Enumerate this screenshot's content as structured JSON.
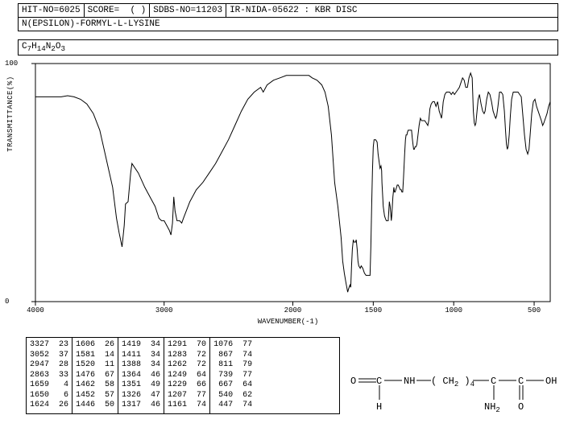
{
  "header": {
    "hit_no_label": "HIT-NO=",
    "hit_no": "6025",
    "score_label": "SCORE=",
    "score_val": "(  )",
    "sdbs_label": "SDBS-NO=",
    "sdbs_no": "11203",
    "ir_label": "IR-NIDA-05622 : KBR DISC"
  },
  "compound_name": "N(EPSILON)-FORMYL-L-LYSINE",
  "formula": "C7H14N2O3",
  "chart": {
    "type": "line",
    "title": "",
    "ylabel": "TRANSMITTANCE(%)",
    "xlabel": "WAVENUMBER(-1)",
    "ylim": [
      0,
      100
    ],
    "yticks": [
      0,
      100
    ],
    "xlim_display": [
      4000,
      400
    ],
    "xticks": [
      4000,
      3000,
      2000,
      1500,
      1000,
      500
    ],
    "line_color": "#000000",
    "line_width": 1,
    "plot_border_color": "#000000",
    "background_color": "#ffffff",
    "data": [
      [
        4000,
        86
      ],
      [
        3900,
        86
      ],
      [
        3800,
        86
      ],
      [
        3750,
        86.5
      ],
      [
        3700,
        86
      ],
      [
        3650,
        85
      ],
      [
        3600,
        83
      ],
      [
        3550,
        79
      ],
      [
        3500,
        72
      ],
      [
        3450,
        60
      ],
      [
        3400,
        48
      ],
      [
        3370,
        35
      ],
      [
        3350,
        29
      ],
      [
        3327,
        23
      ],
      [
        3310,
        32
      ],
      [
        3300,
        41
      ],
      [
        3280,
        42
      ],
      [
        3260,
        54
      ],
      [
        3250,
        58
      ],
      [
        3200,
        54
      ],
      [
        3150,
        48
      ],
      [
        3100,
        43
      ],
      [
        3070,
        40
      ],
      [
        3052,
        37
      ],
      [
        3040,
        35
      ],
      [
        3020,
        34
      ],
      [
        3000,
        34
      ],
      [
        2980,
        32
      ],
      [
        2960,
        30
      ],
      [
        2947,
        28
      ],
      [
        2935,
        33
      ],
      [
        2925,
        44
      ],
      [
        2915,
        38
      ],
      [
        2900,
        34
      ],
      [
        2880,
        34
      ],
      [
        2863,
        33
      ],
      [
        2850,
        35
      ],
      [
        2800,
        42
      ],
      [
        2750,
        47
      ],
      [
        2700,
        50
      ],
      [
        2650,
        54
      ],
      [
        2600,
        58
      ],
      [
        2550,
        63
      ],
      [
        2500,
        68
      ],
      [
        2450,
        74
      ],
      [
        2400,
        80
      ],
      [
        2350,
        85
      ],
      [
        2300,
        88
      ],
      [
        2250,
        90
      ],
      [
        2230,
        88
      ],
      [
        2200,
        91
      ],
      [
        2150,
        93
      ],
      [
        2100,
        94
      ],
      [
        2050,
        95
      ],
      [
        2000,
        95
      ],
      [
        1950,
        95
      ],
      [
        1900,
        95
      ],
      [
        1880,
        94
      ],
      [
        1850,
        93
      ],
      [
        1820,
        91
      ],
      [
        1800,
        88
      ],
      [
        1780,
        82
      ],
      [
        1760,
        70
      ],
      [
        1740,
        50
      ],
      [
        1720,
        40
      ],
      [
        1700,
        27
      ],
      [
        1690,
        17
      ],
      [
        1680,
        12
      ],
      [
        1670,
        8
      ],
      [
        1659,
        4
      ],
      [
        1655,
        5
      ],
      [
        1650,
        6
      ],
      [
        1645,
        7
      ],
      [
        1640,
        6
      ],
      [
        1635,
        15
      ],
      [
        1630,
        22
      ],
      [
        1624,
        26
      ],
      [
        1620,
        25
      ],
      [
        1615,
        25
      ],
      [
        1610,
        25
      ],
      [
        1606,
        26
      ],
      [
        1600,
        22
      ],
      [
        1595,
        17
      ],
      [
        1590,
        15
      ],
      [
        1581,
        14
      ],
      [
        1575,
        15
      ],
      [
        1565,
        14
      ],
      [
        1555,
        12
      ],
      [
        1545,
        11
      ],
      [
        1530,
        11
      ],
      [
        1520,
        11
      ],
      [
        1515,
        23
      ],
      [
        1510,
        40
      ],
      [
        1505,
        55
      ],
      [
        1500,
        65
      ],
      [
        1495,
        68
      ],
      [
        1490,
        68
      ],
      [
        1485,
        68
      ],
      [
        1476,
        67
      ],
      [
        1470,
        62
      ],
      [
        1462,
        58
      ],
      [
        1458,
        56
      ],
      [
        1452,
        57
      ],
      [
        1448,
        55
      ],
      [
        1446,
        50
      ],
      [
        1442,
        45
      ],
      [
        1438,
        40
      ],
      [
        1430,
        36
      ],
      [
        1425,
        35
      ],
      [
        1419,
        34
      ],
      [
        1415,
        34
      ],
      [
        1411,
        34
      ],
      [
        1407,
        34
      ],
      [
        1400,
        42
      ],
      [
        1395,
        40
      ],
      [
        1390,
        36
      ],
      [
        1388,
        34
      ],
      [
        1385,
        36
      ],
      [
        1378,
        44
      ],
      [
        1372,
        48
      ],
      [
        1368,
        46
      ],
      [
        1364,
        46
      ],
      [
        1360,
        47
      ],
      [
        1355,
        48
      ],
      [
        1351,
        49
      ],
      [
        1345,
        49
      ],
      [
        1338,
        48
      ],
      [
        1332,
        47
      ],
      [
        1326,
        47
      ],
      [
        1322,
        46
      ],
      [
        1317,
        46
      ],
      [
        1312,
        52
      ],
      [
        1305,
        62
      ],
      [
        1300,
        68
      ],
      [
        1296,
        70
      ],
      [
        1291,
        70
      ],
      [
        1288,
        71
      ],
      [
        1283,
        72
      ],
      [
        1278,
        72
      ],
      [
        1270,
        72
      ],
      [
        1262,
        72
      ],
      [
        1258,
        69
      ],
      [
        1253,
        66
      ],
      [
        1249,
        64
      ],
      [
        1245,
        64
      ],
      [
        1240,
        65
      ],
      [
        1235,
        65
      ],
      [
        1229,
        66
      ],
      [
        1222,
        70
      ],
      [
        1215,
        74
      ],
      [
        1210,
        76
      ],
      [
        1207,
        77
      ],
      [
        1200,
        76
      ],
      [
        1195,
        76
      ],
      [
        1190,
        76
      ],
      [
        1180,
        76
      ],
      [
        1170,
        75
      ],
      [
        1161,
        74
      ],
      [
        1155,
        76
      ],
      [
        1148,
        81
      ],
      [
        1140,
        83
      ],
      [
        1130,
        84
      ],
      [
        1120,
        84
      ],
      [
        1110,
        82
      ],
      [
        1100,
        84
      ],
      [
        1090,
        80
      ],
      [
        1080,
        78
      ],
      [
        1076,
        77
      ],
      [
        1072,
        79
      ],
      [
        1065,
        84
      ],
      [
        1055,
        87
      ],
      [
        1045,
        88
      ],
      [
        1035,
        88
      ],
      [
        1025,
        88
      ],
      [
        1015,
        87
      ],
      [
        1005,
        88
      ],
      [
        995,
        87
      ],
      [
        985,
        88
      ],
      [
        975,
        89
      ],
      [
        965,
        90
      ],
      [
        955,
        92
      ],
      [
        945,
        94
      ],
      [
        935,
        93
      ],
      [
        925,
        90
      ],
      [
        915,
        90
      ],
      [
        905,
        94
      ],
      [
        895,
        96
      ],
      [
        885,
        94
      ],
      [
        878,
        80
      ],
      [
        872,
        75
      ],
      [
        867,
        74
      ],
      [
        862,
        75
      ],
      [
        855,
        80
      ],
      [
        848,
        85
      ],
      [
        840,
        87
      ],
      [
        830,
        83
      ],
      [
        820,
        80
      ],
      [
        811,
        79
      ],
      [
        805,
        80
      ],
      [
        795,
        85
      ],
      [
        785,
        88
      ],
      [
        775,
        87
      ],
      [
        765,
        84
      ],
      [
        755,
        80
      ],
      [
        745,
        78
      ],
      [
        739,
        77
      ],
      [
        733,
        78
      ],
      [
        725,
        82
      ],
      [
        715,
        88
      ],
      [
        705,
        88
      ],
      [
        695,
        87
      ],
      [
        685,
        80
      ],
      [
        678,
        72
      ],
      [
        672,
        66
      ],
      [
        667,
        64
      ],
      [
        662,
        65
      ],
      [
        655,
        70
      ],
      [
        648,
        78
      ],
      [
        640,
        85
      ],
      [
        630,
        88
      ],
      [
        620,
        88
      ],
      [
        610,
        88
      ],
      [
        600,
        88
      ],
      [
        590,
        87
      ],
      [
        580,
        86
      ],
      [
        570,
        78
      ],
      [
        560,
        70
      ],
      [
        550,
        64
      ],
      [
        540,
        62
      ],
      [
        532,
        64
      ],
      [
        525,
        70
      ],
      [
        515,
        79
      ],
      [
        505,
        84
      ],
      [
        495,
        85
      ],
      [
        485,
        82
      ],
      [
        475,
        80
      ],
      [
        465,
        78
      ],
      [
        455,
        76
      ],
      [
        447,
        74
      ],
      [
        440,
        75
      ],
      [
        430,
        77
      ],
      [
        420,
        79
      ],
      [
        410,
        82
      ],
      [
        400,
        84
      ]
    ]
  },
  "peak_table": {
    "columns": [
      [
        [
          3327,
          23
        ],
        [
          3052,
          37
        ],
        [
          2947,
          28
        ],
        [
          2863,
          33
        ],
        [
          1659,
          4
        ],
        [
          1650,
          6
        ],
        [
          1624,
          26
        ]
      ],
      [
        [
          1606,
          26
        ],
        [
          1581,
          14
        ],
        [
          1520,
          11
        ],
        [
          1476,
          67
        ],
        [
          1462,
          58
        ],
        [
          1452,
          57
        ],
        [
          1446,
          50
        ]
      ],
      [
        [
          1419,
          34
        ],
        [
          1411,
          34
        ],
        [
          1388,
          34
        ],
        [
          1364,
          46
        ],
        [
          1351,
          49
        ],
        [
          1326,
          47
        ],
        [
          1317,
          46
        ]
      ],
      [
        [
          1291,
          70
        ],
        [
          1283,
          72
        ],
        [
          1262,
          72
        ],
        [
          1249,
          64
        ],
        [
          1229,
          66
        ],
        [
          1207,
          77
        ],
        [
          1161,
          74
        ]
      ],
      [
        [
          1076,
          77
        ],
        [
          867,
          74
        ],
        [
          811,
          79
        ],
        [
          739,
          77
        ],
        [
          667,
          64
        ],
        [
          540,
          62
        ],
        [
          447,
          74
        ]
      ]
    ],
    "cell_font_size": 10,
    "colors": {
      "border": "#000000",
      "text": "#000000"
    }
  },
  "structure": {
    "atoms_text": [
      "O",
      "C",
      "H",
      "NH",
      "( CH2 )4",
      "C",
      "NH2",
      "C",
      "O",
      "OH"
    ],
    "line_color": "#000000"
  }
}
